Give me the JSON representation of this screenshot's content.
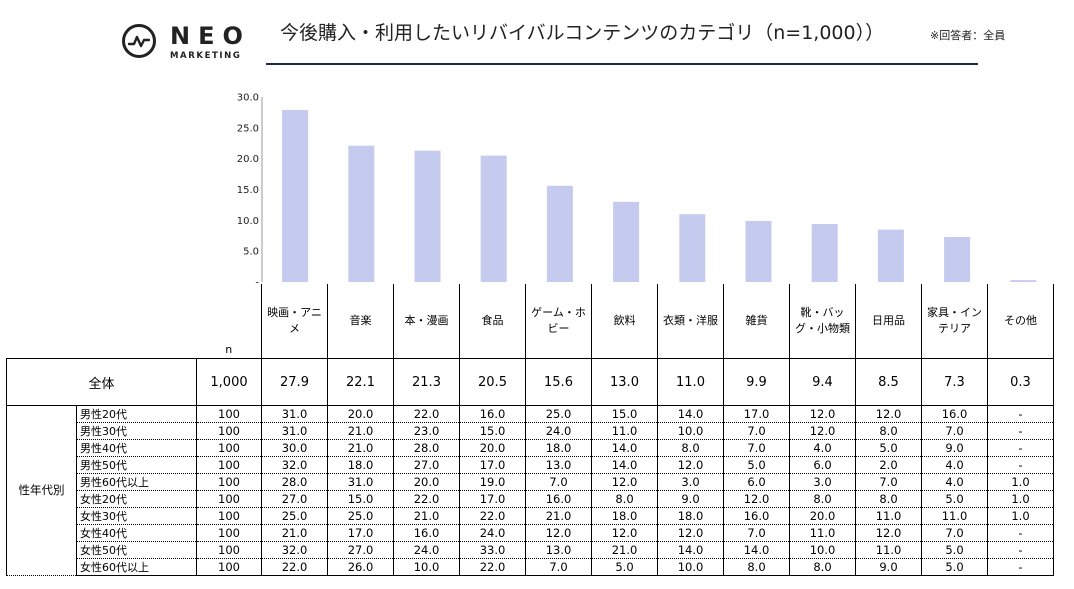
{
  "logo": {
    "name": "NEO",
    "subtitle": "MARKETING"
  },
  "title": "今後購入・利用したいリバイバルコンテンツのカテゴリ（n=1,000））",
  "title_note": "※回答者：全員",
  "colors": {
    "bar": "#c5cbef",
    "rule": "#1f2a44",
    "axis": "#999999"
  },
  "chart_data": {
    "type": "bar",
    "categories": [
      "映画・アニメ",
      "音楽",
      "本・漫画",
      "食品",
      "ゲーム・ホビー",
      "飲料",
      "衣類・洋服",
      "雑貨",
      "靴・バッグ・小物類",
      "日用品",
      "家具・インテリア",
      "その他"
    ],
    "values": [
      27.9,
      22.1,
      21.3,
      20.5,
      15.6,
      13.0,
      11.0,
      9.9,
      9.4,
      8.5,
      7.3,
      0.3
    ],
    "ylim": [
      0,
      30
    ],
    "yticks": [
      "-",
      "5.0",
      "10.0",
      "15.0",
      "20.0",
      "25.0",
      "30.0"
    ],
    "grid": false
  },
  "table": {
    "n_header": "n",
    "category_labels": [
      "映画・アニ\nメ",
      "音楽",
      "本・漫画",
      "食品",
      "ゲーム・ホ\nビー",
      "飲料",
      "衣類・洋服",
      "雑貨",
      "靴・バッ\nグ・小物類",
      "日用品",
      "家具・イン\nテリア",
      "その他"
    ],
    "total": {
      "label": "全体",
      "n": "1,000",
      "values": [
        "27.9",
        "22.1",
        "21.3",
        "20.5",
        "15.6",
        "13.0",
        "11.0",
        "9.9",
        "9.4",
        "8.5",
        "7.3",
        "0.3"
      ]
    },
    "group_label": "性年代別",
    "rows": [
      {
        "label": "男性20代",
        "n": "100",
        "values": [
          "31.0",
          "20.0",
          "22.0",
          "16.0",
          "25.0",
          "15.0",
          "14.0",
          "17.0",
          "12.0",
          "12.0",
          "16.0",
          "-"
        ]
      },
      {
        "label": "男性30代",
        "n": "100",
        "values": [
          "31.0",
          "21.0",
          "23.0",
          "15.0",
          "24.0",
          "11.0",
          "10.0",
          "7.0",
          "12.0",
          "8.0",
          "7.0",
          "-"
        ]
      },
      {
        "label": "男性40代",
        "n": "100",
        "values": [
          "30.0",
          "21.0",
          "28.0",
          "20.0",
          "18.0",
          "14.0",
          "8.0",
          "7.0",
          "4.0",
          "5.0",
          "9.0",
          "-"
        ]
      },
      {
        "label": "男性50代",
        "n": "100",
        "values": [
          "32.0",
          "18.0",
          "27.0",
          "17.0",
          "13.0",
          "14.0",
          "12.0",
          "5.0",
          "6.0",
          "2.0",
          "4.0",
          "-"
        ]
      },
      {
        "label": "男性60代以上",
        "n": "100",
        "values": [
          "28.0",
          "31.0",
          "20.0",
          "19.0",
          "7.0",
          "12.0",
          "3.0",
          "6.0",
          "3.0",
          "7.0",
          "4.0",
          "1.0"
        ]
      },
      {
        "label": "女性20代",
        "n": "100",
        "values": [
          "27.0",
          "15.0",
          "22.0",
          "17.0",
          "16.0",
          "8.0",
          "9.0",
          "12.0",
          "8.0",
          "8.0",
          "5.0",
          "1.0"
        ]
      },
      {
        "label": "女性30代",
        "n": "100",
        "values": [
          "25.0",
          "25.0",
          "21.0",
          "22.0",
          "21.0",
          "18.0",
          "18.0",
          "16.0",
          "20.0",
          "11.0",
          "11.0",
          "1.0"
        ]
      },
      {
        "label": "女性40代",
        "n": "100",
        "values": [
          "21.0",
          "17.0",
          "16.0",
          "24.0",
          "12.0",
          "12.0",
          "12.0",
          "7.0",
          "11.0",
          "12.0",
          "7.0",
          "-"
        ]
      },
      {
        "label": "女性50代",
        "n": "100",
        "values": [
          "32.0",
          "27.0",
          "24.0",
          "33.0",
          "13.0",
          "21.0",
          "14.0",
          "14.0",
          "10.0",
          "11.0",
          "5.0",
          "-"
        ]
      },
      {
        "label": "女性60代以上",
        "n": "100",
        "values": [
          "22.0",
          "26.0",
          "10.0",
          "22.0",
          "7.0",
          "5.0",
          "10.0",
          "8.0",
          "8.0",
          "9.0",
          "5.0",
          "-"
        ]
      }
    ]
  }
}
